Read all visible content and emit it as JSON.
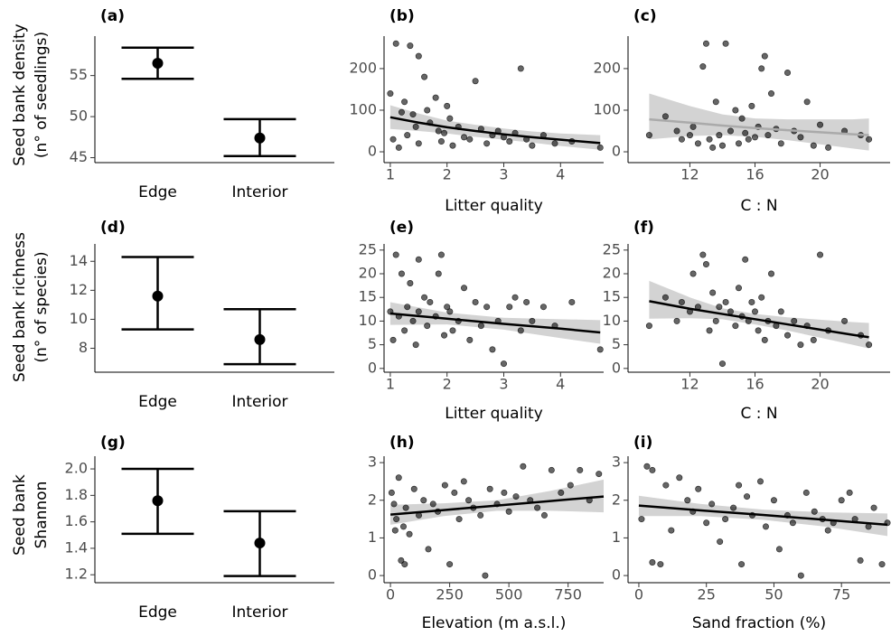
{
  "chart_data": [
    {
      "type": "errorbar",
      "title": "(a)",
      "ylabel": [
        "Seed bank density",
        "(n° of seedlings)"
      ],
      "categories": [
        "Edge",
        "Interior"
      ],
      "values": [
        56.5,
        47.4
      ],
      "lower": [
        54.6,
        45.2
      ],
      "upper": [
        58.4,
        49.7
      ],
      "color": "#000000",
      "ylim": [
        44.4,
        59.8
      ],
      "yticks": [
        45,
        50,
        55
      ]
    },
    {
      "type": "scatter",
      "title": "(b)",
      "xlabel": "Litter quality",
      "color": "#000000",
      "x": [
        1.0,
        1.05,
        1.1,
        1.15,
        1.2,
        1.25,
        1.3,
        1.35,
        1.4,
        1.45,
        1.5,
        1.5,
        1.6,
        1.65,
        1.7,
        1.8,
        1.85,
        1.9,
        1.95,
        2.0,
        2.05,
        2.1,
        2.2,
        2.3,
        2.4,
        2.5,
        2.6,
        2.7,
        2.8,
        2.9,
        3.0,
        3.1,
        3.2,
        3.3,
        3.4,
        3.5,
        3.7,
        3.9,
        4.2,
        4.7
      ],
      "y": [
        140,
        30,
        260,
        10,
        95,
        120,
        40,
        255,
        90,
        60,
        230,
        20,
        180,
        100,
        70,
        130,
        50,
        25,
        45,
        110,
        80,
        15,
        60,
        35,
        30,
        170,
        55,
        20,
        40,
        50,
        35,
        25,
        45,
        200,
        30,
        15,
        40,
        20,
        25,
        10
      ],
      "fit": {
        "color": "#000000",
        "x": [
          1,
          1.5,
          2,
          2.5,
          3,
          3.5,
          4,
          4.7
        ],
        "y": [
          83,
          70,
          59,
          50,
          42,
          35,
          29,
          21
        ],
        "lower": [
          55,
          50,
          44,
          36,
          29,
          22,
          14,
          5
        ],
        "upper": [
          112,
          92,
          75,
          65,
          56,
          49,
          44,
          40
        ]
      },
      "xlim": [
        0.89,
        4.76
      ],
      "xticks": [
        1,
        2,
        3,
        4
      ],
      "ylim": [
        -26,
        278
      ],
      "yticks": [
        0,
        100,
        200
      ]
    },
    {
      "type": "scatter",
      "title": "(c)",
      "xlabel": "C : N",
      "color": "#000000",
      "x": [
        9.5,
        10.5,
        11.2,
        11.5,
        12,
        12.2,
        12.5,
        12.8,
        13,
        13.2,
        13.4,
        13.6,
        13.8,
        14,
        14.2,
        14.5,
        14.8,
        15,
        15.2,
        15.4,
        15.6,
        15.8,
        16,
        16.2,
        16.4,
        16.6,
        16.8,
        17,
        17.3,
        17.6,
        18,
        18.4,
        18.8,
        19.2,
        19.6,
        20,
        20.5,
        21.5,
        22.5,
        23
      ],
      "y": [
        40,
        85,
        50,
        30,
        40,
        60,
        20,
        205,
        260,
        30,
        10,
        120,
        40,
        15,
        260,
        50,
        100,
        20,
        80,
        45,
        30,
        110,
        35,
        60,
        200,
        230,
        40,
        140,
        55,
        20,
        190,
        50,
        35,
        120,
        15,
        65,
        10,
        50,
        40,
        30
      ],
      "fit": {
        "color": "#aaaaaa",
        "x": [
          9.5,
          12,
          14,
          16,
          18,
          20,
          22,
          23
        ],
        "y": [
          78,
          70,
          63,
          57,
          52,
          47,
          42,
          40
        ],
        "lower": [
          30,
          38,
          40,
          36,
          28,
          18,
          8,
          3
        ],
        "upper": [
          140,
          110,
          90,
          80,
          78,
          78,
          78,
          80
        ]
      },
      "xlim": [
        8.2,
        24.3
      ],
      "xticks": [
        12,
        16,
        20
      ],
      "ylim": [
        -26,
        278
      ],
      "yticks": [
        0,
        100,
        200
      ]
    },
    {
      "type": "errorbar",
      "title": "(d)",
      "ylabel": [
        "Seed bank richness",
        "(n° of species)"
      ],
      "categories": [
        "Edge",
        "Interior"
      ],
      "values": [
        11.6,
        8.6
      ],
      "lower": [
        9.3,
        6.9
      ],
      "upper": [
        14.3,
        10.7
      ],
      "color": "#000000",
      "ylim": [
        6.35,
        15.2
      ],
      "yticks": [
        8,
        10,
        12,
        14
      ]
    },
    {
      "type": "scatter",
      "title": "(e)",
      "xlabel": "Litter quality",
      "color": "#000000",
      "x": [
        1.0,
        1.05,
        1.1,
        1.15,
        1.2,
        1.25,
        1.3,
        1.35,
        1.4,
        1.45,
        1.5,
        1.5,
        1.6,
        1.65,
        1.7,
        1.8,
        1.85,
        1.9,
        1.95,
        2.0,
        2.05,
        2.1,
        2.2,
        2.3,
        2.4,
        2.5,
        2.6,
        2.7,
        2.8,
        2.9,
        3.0,
        3.1,
        3.2,
        3.3,
        3.4,
        3.5,
        3.7,
        3.9,
        4.2,
        4.7
      ],
      "y": [
        12,
        6,
        24,
        11,
        20,
        8,
        13,
        18,
        10,
        5,
        23,
        12,
        15,
        9,
        14,
        11,
        20,
        24,
        7,
        13,
        12,
        8,
        10,
        17,
        6,
        14,
        9,
        13,
        4,
        10,
        1,
        13,
        15,
        8,
        14,
        10,
        13,
        9,
        14,
        4
      ],
      "fit": {
        "color": "#000000",
        "x": [
          1,
          2,
          3,
          4,
          4.7
        ],
        "y": [
          11.6,
          10.5,
          9.4,
          8.4,
          7.6
        ],
        "lower": [
          9.2,
          9.3,
          8.2,
          6.4,
          5.2
        ],
        "upper": [
          14,
          11.8,
          10.7,
          10.4,
          10.2
        ]
      },
      "xlim": [
        0.89,
        4.76
      ],
      "xticks": [
        1,
        2,
        3,
        4
      ],
      "ylim": [
        -0.8,
        26.3
      ],
      "yticks": [
        0,
        5,
        10,
        15,
        20,
        25
      ]
    },
    {
      "type": "scatter",
      "title": "(f)",
      "xlabel": "C : N",
      "color": "#000000",
      "x": [
        9.5,
        10.5,
        11.2,
        11.5,
        12,
        12.2,
        12.5,
        12.8,
        13,
        13.2,
        13.4,
        13.6,
        13.8,
        14,
        14.2,
        14.5,
        14.8,
        15,
        15.2,
        15.4,
        15.6,
        15.8,
        16,
        16.2,
        16.4,
        16.6,
        16.8,
        17,
        17.3,
        17.6,
        18,
        18.4,
        18.8,
        19.2,
        19.6,
        20,
        20.5,
        21.5,
        22.5,
        23
      ],
      "y": [
        9,
        15,
        10,
        14,
        12,
        20,
        13,
        24,
        22,
        8,
        16,
        10,
        13,
        1,
        14,
        12,
        9,
        17,
        11,
        23,
        10,
        14,
        12,
        8,
        15,
        6,
        10,
        20,
        9,
        12,
        7,
        10,
        5,
        9,
        6,
        24,
        8,
        10,
        7,
        5
      ],
      "fit": {
        "color": "#000000",
        "x": [
          9.5,
          12,
          14,
          16,
          18,
          20,
          22,
          23
        ],
        "y": [
          14.2,
          12.6,
          11.5,
          10.4,
          9.3,
          8.2,
          7.1,
          6.6
        ],
        "lower": [
          10.5,
          10.6,
          10.4,
          9.3,
          8,
          6.5,
          5,
          4.2
        ],
        "upper": [
          18.5,
          15,
          12.7,
          11.5,
          10.8,
          10.3,
          9.8,
          9.6
        ]
      },
      "xlim": [
        8.2,
        24.3
      ],
      "xticks": [
        12,
        16,
        20
      ],
      "ylim": [
        -0.8,
        26.3
      ],
      "yticks": [
        0,
        5,
        10,
        15,
        20,
        25
      ]
    },
    {
      "type": "errorbar",
      "title": "(g)",
      "ylabel": [
        "Seed bank",
        "Shannon"
      ],
      "categories": [
        "Edge",
        "Interior"
      ],
      "values": [
        1.76,
        1.44
      ],
      "lower": [
        1.51,
        1.19
      ],
      "upper": [
        2.0,
        1.68
      ],
      "color": "#000000",
      "ylim": [
        1.14,
        2.096
      ],
      "yticks": [
        1.2,
        1.4,
        1.6,
        1.8,
        {
          "value": 2,
          "label": "2.0"
        }
      ]
    },
    {
      "type": "scatter",
      "title": "(h)",
      "xlabel": "Elevation (m a.s.l.)",
      "color": "#000000",
      "x": [
        5,
        15,
        25,
        35,
        45,
        55,
        65,
        80,
        100,
        120,
        140,
        160,
        180,
        200,
        230,
        250,
        270,
        290,
        310,
        330,
        350,
        380,
        400,
        420,
        450,
        480,
        500,
        530,
        560,
        590,
        620,
        650,
        680,
        720,
        760,
        800,
        840,
        880,
        20,
        60
      ],
      "y": [
        2.2,
        1.9,
        1.5,
        2.6,
        0.4,
        1.3,
        1.8,
        1.1,
        2.3,
        1.6,
        2.0,
        0.7,
        1.9,
        1.7,
        2.4,
        0.3,
        2.2,
        1.5,
        2.5,
        2.0,
        1.8,
        1.6,
        0.0,
        2.3,
        1.9,
        2.2,
        1.7,
        2.1,
        2.9,
        2.0,
        1.8,
        1.6,
        2.8,
        2.2,
        2.4,
        2.8,
        2.0,
        2.7,
        1.2,
        0.3
      ],
      "fit": {
        "color": "#000000",
        "x": [
          0,
          225,
          450,
          675,
          900
        ],
        "y": [
          1.62,
          1.74,
          1.86,
          1.98,
          2.1
        ],
        "lower": [
          1.35,
          1.58,
          1.72,
          1.72,
          1.68
        ],
        "upper": [
          1.88,
          1.92,
          2.0,
          2.25,
          2.55
        ]
      },
      "xlim": [
        -27,
        900
      ],
      "xticks": [
        0,
        250,
        500,
        750
      ],
      "ylim": [
        -0.19,
        3.17
      ],
      "yticks": [
        0,
        1,
        2,
        3
      ]
    },
    {
      "type": "scatter",
      "title": "(i)",
      "xlabel": "Sand fraction (%)",
      "color": "#000000",
      "x": [
        1,
        3,
        5,
        8,
        10,
        12,
        15,
        18,
        20,
        22,
        25,
        27,
        30,
        32,
        35,
        37,
        38,
        40,
        42,
        45,
        47,
        50,
        52,
        55,
        57,
        60,
        62,
        65,
        68,
        70,
        72,
        75,
        78,
        80,
        82,
        85,
        87,
        90,
        92,
        5
      ],
      "y": [
        1.5,
        2.9,
        2.8,
        0.3,
        2.4,
        1.2,
        2.6,
        2.0,
        1.7,
        2.3,
        1.4,
        1.9,
        0.9,
        1.5,
        1.8,
        2.4,
        0.3,
        2.1,
        1.6,
        2.5,
        1.3,
        2.0,
        0.7,
        1.6,
        1.4,
        0.0,
        2.2,
        1.7,
        1.5,
        1.2,
        1.4,
        2.0,
        2.2,
        1.5,
        0.4,
        1.3,
        1.8,
        0.3,
        1.4,
        0.35
      ],
      "fit": {
        "color": "#000000",
        "x": [
          0,
          23,
          46,
          69,
          92
        ],
        "y": [
          1.86,
          1.73,
          1.61,
          1.48,
          1.35
        ],
        "lower": [
          1.58,
          1.58,
          1.48,
          1.3,
          1.05
        ],
        "upper": [
          2.12,
          1.9,
          1.75,
          1.68,
          1.65
        ]
      },
      "xlim": [
        -4,
        93
      ],
      "xticks": [
        0,
        25,
        50,
        75
      ],
      "ylim": [
        -0.19,
        3.17
      ],
      "yticks": [
        0,
        1,
        2,
        3
      ]
    }
  ]
}
